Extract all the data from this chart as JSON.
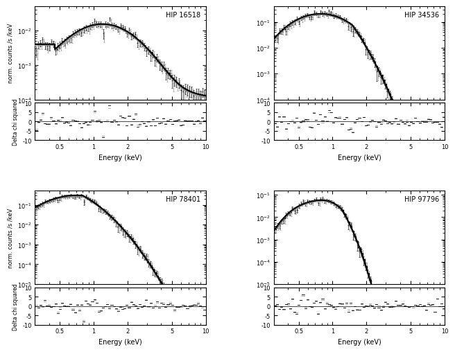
{
  "panels": [
    {
      "label": "HIP 16518",
      "ylim_main": [
        0.0001,
        0.05
      ],
      "ylim_res": [
        -10,
        10
      ],
      "xlim": [
        0.3,
        10
      ],
      "spec_peak": 1.2,
      "spec_peak_val": 0.015,
      "spec_low_val": 0.004
    },
    {
      "label": "HIP 34536",
      "ylim_main": [
        0.0001,
        0.4
      ],
      "ylim_res": [
        -10,
        10
      ],
      "xlim": [
        0.3,
        10
      ],
      "spec_peak": 0.8,
      "spec_peak_val": 0.2,
      "spec_low_val": 0.015
    },
    {
      "label": "HIP 78401",
      "ylim_main": [
        1e-05,
        0.5
      ],
      "ylim_res": [
        -10,
        10
      ],
      "xlim": [
        0.3,
        10
      ],
      "spec_peak": 0.7,
      "spec_peak_val": 0.3,
      "spec_low_val": 0.2
    },
    {
      "label": "HIP 97796",
      "ylim_main": [
        1e-05,
        0.15
      ],
      "ylim_res": [
        -10,
        10
      ],
      "xlim": [
        0.3,
        10
      ],
      "spec_peak": 0.9,
      "spec_peak_val": 0.04,
      "spec_low_val": 0.003
    }
  ],
  "xlabel": "Energy (keV)",
  "ylabel_main": "norm. counts /s /keV",
  "ylabel_res": "Delta chi squared",
  "background_color": "#ffffff",
  "fig_width": 6.71,
  "fig_height": 5.05
}
